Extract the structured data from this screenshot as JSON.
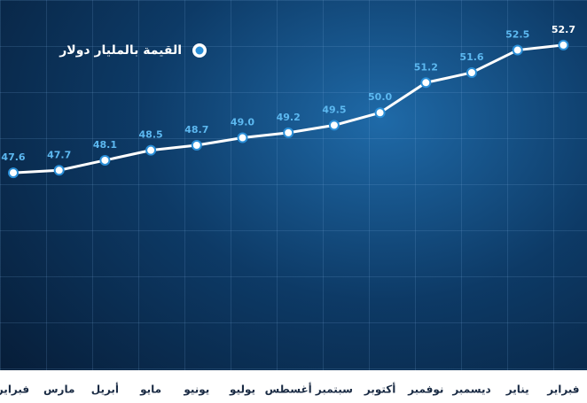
{
  "chart_data": {
    "type": "line",
    "categories": [
      "فبراير",
      "مارس",
      "أبريل",
      "مايو",
      "يونيو",
      "يوليو",
      "أغسطس",
      "سبتمبر",
      "أكتوبر",
      "نوفمبر",
      "ديسمبر",
      "يناير",
      "فبراير"
    ],
    "series": [
      {
        "name": "القيمة بالمليار دولار",
        "color": "#ffffff",
        "values": [
          47.6,
          47.7,
          48.1,
          48.5,
          48.7,
          49.0,
          49.2,
          49.5,
          50.0,
          51.2,
          51.6,
          52.5,
          52.7
        ],
        "value_labels": [
          "47.6",
          "47.7",
          "48.1",
          "48.5",
          "48.7",
          "49.0",
          "49.2",
          "49.5",
          "50.0",
          "51.2",
          "51.6",
          "52.5",
          "52.7"
        ]
      }
    ],
    "ylim": [
      40,
      54.5
    ]
  }
}
